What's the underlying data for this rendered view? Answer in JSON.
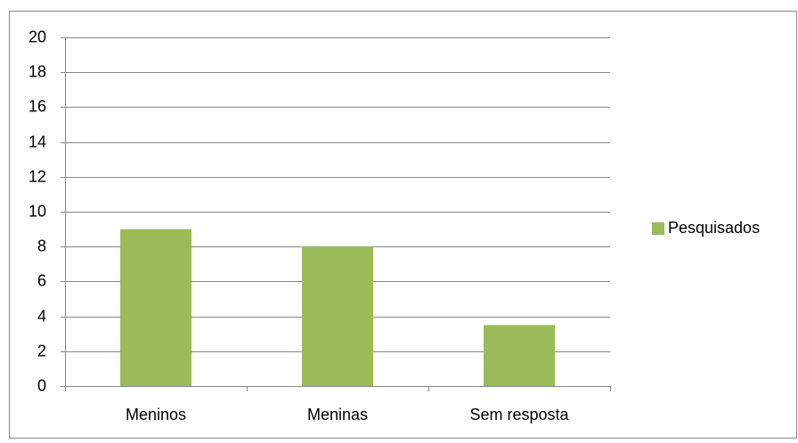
{
  "chart_data": {
    "type": "bar",
    "categories": [
      "Meninos",
      "Meninas",
      "Sem resposta"
    ],
    "series": [
      {
        "name": "Pesquisados",
        "color": "#9bbb59",
        "values": [
          9,
          8,
          3.5
        ]
      }
    ],
    "ylim": [
      0,
      20
    ],
    "yticks": [
      0,
      2,
      4,
      6,
      8,
      10,
      12,
      14,
      16,
      18,
      20
    ],
    "grid": true,
    "legend": "right"
  }
}
